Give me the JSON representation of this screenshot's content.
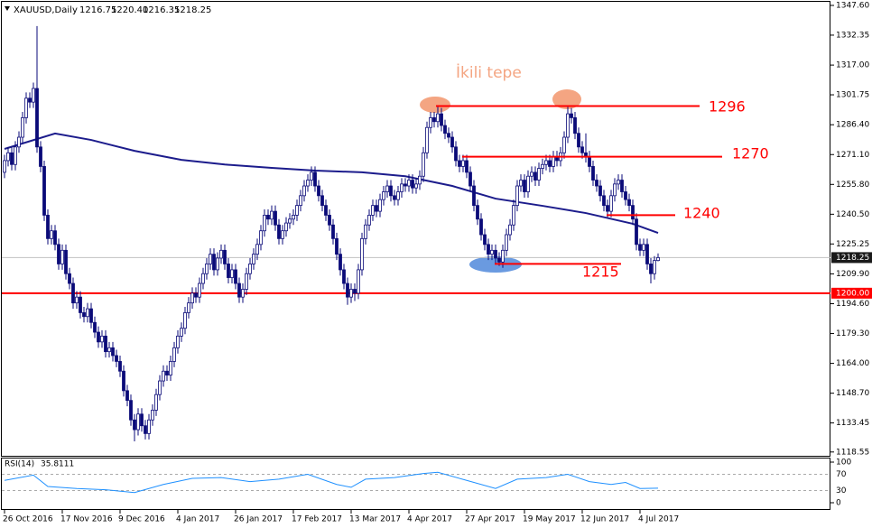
{
  "chart_data": {
    "type": "candlestick",
    "title": "XAUUSD,Daily",
    "last_bar": {
      "values": [
        1216.75,
        1220.4,
        1216.35,
        1218.25
      ],
      "value_labels": [
        "1216.75",
        "1220.40",
        "1216.35",
        "1218.25"
      ]
    },
    "categories": [
      "26 Oct 2016",
      null,
      null,
      null,
      null,
      null,
      null,
      null,
      null,
      null,
      null,
      null,
      null,
      null,
      null,
      null,
      "17 Nov 2016",
      null,
      null,
      null,
      null,
      null,
      null,
      null,
      null,
      null,
      null,
      null,
      null,
      null,
      null,
      null,
      "9 Dec 2016",
      null,
      null,
      null,
      null,
      null,
      null,
      null,
      null,
      null,
      null,
      null,
      null,
      null,
      null,
      null,
      "4 Jan 2017",
      null,
      null,
      null,
      null,
      null,
      null,
      null,
      null,
      null,
      null,
      null,
      null,
      null,
      null,
      null,
      "26 Jan 2017",
      null,
      null,
      null,
      null,
      null,
      null,
      null,
      null,
      null,
      null,
      null,
      null,
      null,
      null,
      null,
      "17 Feb 2017",
      null,
      null,
      null,
      null,
      null,
      null,
      null,
      null,
      null,
      null,
      null,
      null,
      null,
      null,
      null,
      "13 Mar 2017",
      null,
      null,
      null,
      null,
      null,
      null,
      null,
      null,
      null,
      null,
      null,
      null,
      null,
      null,
      null,
      "4 Apr 2017",
      null,
      null,
      null,
      null,
      null,
      null,
      null,
      null,
      null,
      null,
      null,
      null,
      null,
      null,
      null,
      "27 Apr 2017",
      null,
      null,
      null,
      null,
      null,
      null,
      null,
      null,
      null,
      null,
      null,
      null,
      null,
      null,
      null,
      "19 May 2017",
      null,
      null,
      null,
      null,
      null,
      null,
      null,
      null,
      null,
      null,
      null,
      null,
      null,
      null,
      null,
      "12 Jun 2017",
      null,
      null,
      null,
      null,
      null,
      null,
      null,
      null,
      null,
      null,
      null,
      null,
      null,
      null,
      null,
      "4 Jul 2017",
      null,
      null,
      null,
      null,
      null
    ],
    "open": [
      1262,
      1268,
      1272,
      1266,
      1275,
      1280,
      1290,
      1300,
      1298,
      1305,
      1275,
      1265,
      1240,
      1228,
      1232,
      1225,
      1215,
      1222,
      1210,
      1205,
      1195,
      1198,
      1190,
      1188,
      1192,
      1185,
      1180,
      1175,
      1178,
      1170,
      1172,
      1168,
      1165,
      1160,
      1150,
      1145,
      1135,
      1130,
      1138,
      1132,
      1128,
      1135,
      1140,
      1148,
      1155,
      1160,
      1158,
      1165,
      1172,
      1178,
      1182,
      1190,
      1195,
      1200,
      1198,
      1205,
      1210,
      1215,
      1220,
      1212,
      1218,
      1222,
      1215,
      1208,
      1212,
      1205,
      1198,
      1202,
      1210,
      1215,
      1220,
      1225,
      1232,
      1240,
      1238,
      1242,
      1235,
      1228,
      1232,
      1236,
      1238,
      1240,
      1245,
      1250,
      1255,
      1258,
      1262,
      1255,
      1250,
      1245,
      1240,
      1235,
      1228,
      1220,
      1212,
      1205,
      1198,
      1202,
      1200,
      1212,
      1228,
      1235,
      1240,
      1245,
      1242,
      1248,
      1252,
      1255,
      1250,
      1248,
      1252,
      1256,
      1255,
      1258,
      1254,
      1256,
      1260,
      1272,
      1285,
      1290,
      1288,
      1292,
      1286,
      1282,
      1280,
      1275,
      1268,
      1265,
      1268,
      1262,
      1255,
      1245,
      1238,
      1230,
      1225,
      1220,
      1222,
      1218,
      1216,
      1222,
      1230,
      1235,
      1245,
      1255,
      1258,
      1252,
      1260,
      1262,
      1258,
      1264,
      1266,
      1268,
      1265,
      1270,
      1268,
      1272,
      1280,
      1292,
      1290,
      1282,
      1275,
      1272,
      1270,
      1265,
      1258,
      1255,
      1250,
      1245,
      1242,
      1250,
      1256,
      1258,
      1252,
      1248,
      1245,
      1238,
      1225,
      1222,
      1225,
      1215,
      1210,
      1216.75
    ],
    "high": [
      1271,
      1275,
      1275,
      1278,
      1283,
      1293,
      1303,
      1303,
      1308,
      1337,
      1278,
      1268,
      1243,
      1235,
      1235,
      1228,
      1225,
      1225,
      1213,
      1208,
      1201,
      1201,
      1193,
      1195,
      1195,
      1188,
      1183,
      1181,
      1181,
      1175,
      1175,
      1171,
      1168,
      1163,
      1153,
      1148,
      1138,
      1141,
      1141,
      1135,
      1138,
      1143,
      1151,
      1158,
      1163,
      1163,
      1168,
      1175,
      1181,
      1185,
      1193,
      1198,
      1203,
      1203,
      1208,
      1213,
      1218,
      1223,
      1223,
      1221,
      1225,
      1225,
      1218,
      1215,
      1215,
      1208,
      1205,
      1213,
      1218,
      1223,
      1228,
      1235,
      1243,
      1243,
      1245,
      1245,
      1238,
      1235,
      1239,
      1241,
      1243,
      1248,
      1253,
      1258,
      1261,
      1265,
      1265,
      1258,
      1253,
      1248,
      1243,
      1238,
      1231,
      1223,
      1215,
      1208,
      1205,
      1205,
      1215,
      1231,
      1238,
      1243,
      1248,
      1248,
      1251,
      1255,
      1258,
      1258,
      1253,
      1255,
      1259,
      1259,
      1261,
      1261,
      1259,
      1263,
      1275,
      1288,
      1293,
      1293,
      1296,
      1295,
      1289,
      1285,
      1283,
      1278,
      1271,
      1271,
      1271,
      1265,
      1258,
      1248,
      1241,
      1233,
      1228,
      1225,
      1225,
      1221,
      1225,
      1233,
      1238,
      1248,
      1258,
      1261,
      1261,
      1263,
      1265,
      1265,
      1267,
      1269,
      1271,
      1271,
      1273,
      1273,
      1275,
      1283,
      1296,
      1295,
      1293,
      1285,
      1278,
      1282,
      1273,
      1268,
      1261,
      1258,
      1253,
      1248,
      1253,
      1259,
      1261,
      1261,
      1255,
      1251,
      1248,
      1241,
      1228,
      1228,
      1228,
      1218,
      1219,
      1220.4
    ],
    "low": [
      1259,
      1265,
      1263,
      1263,
      1272,
      1277,
      1287,
      1295,
      1295,
      1272,
      1262,
      1237,
      1225,
      1225,
      1222,
      1212,
      1212,
      1207,
      1202,
      1192,
      1192,
      1187,
      1185,
      1185,
      1182,
      1177,
      1172,
      1172,
      1167,
      1167,
      1165,
      1162,
      1157,
      1147,
      1142,
      1132,
      1124,
      1127,
      1129,
      1125,
      1125,
      1132,
      1137,
      1145,
      1152,
      1155,
      1155,
      1162,
      1169,
      1175,
      1179,
      1187,
      1192,
      1195,
      1195,
      1202,
      1207,
      1212,
      1209,
      1209,
      1215,
      1212,
      1205,
      1205,
      1202,
      1195,
      1195,
      1199,
      1207,
      1212,
      1217,
      1222,
      1229,
      1235,
      1235,
      1232,
      1225,
      1225,
      1229,
      1233,
      1235,
      1237,
      1242,
      1247,
      1252,
      1255,
      1252,
      1247,
      1242,
      1237,
      1232,
      1225,
      1217,
      1209,
      1202,
      1194,
      1195,
      1196,
      1197,
      1209,
      1225,
      1232,
      1237,
      1239,
      1239,
      1245,
      1249,
      1247,
      1245,
      1245,
      1249,
      1252,
      1252,
      1251,
      1251,
      1253,
      1257,
      1269,
      1282,
      1285,
      1285,
      1283,
      1279,
      1277,
      1272,
      1265,
      1262,
      1262,
      1259,
      1252,
      1242,
      1235,
      1227,
      1222,
      1217,
      1217,
      1215,
      1214,
      1213,
      1219,
      1227,
      1232,
      1242,
      1252,
      1249,
      1249,
      1257,
      1255,
      1255,
      1261,
      1263,
      1262,
      1262,
      1265,
      1265,
      1269,
      1277,
      1287,
      1279,
      1272,
      1269,
      1267,
      1262,
      1255,
      1252,
      1247,
      1242,
      1239,
      1239,
      1247,
      1253,
      1249,
      1245,
      1242,
      1235,
      1222,
      1219,
      1219,
      1212,
      1205,
      1207,
      1216.35
    ],
    "close": [
      1268,
      1272,
      1266,
      1275,
      1280,
      1290,
      1300,
      1298,
      1305,
      1275,
      1265,
      1240,
      1228,
      1232,
      1225,
      1215,
      1222,
      1210,
      1205,
      1195,
      1198,
      1190,
      1188,
      1192,
      1185,
      1180,
      1175,
      1178,
      1170,
      1172,
      1168,
      1165,
      1160,
      1150,
      1145,
      1135,
      1130,
      1138,
      1132,
      1128,
      1135,
      1140,
      1148,
      1155,
      1160,
      1158,
      1165,
      1172,
      1178,
      1182,
      1190,
      1195,
      1200,
      1198,
      1205,
      1210,
      1215,
      1220,
      1212,
      1218,
      1222,
      1215,
      1208,
      1212,
      1205,
      1198,
      1202,
      1210,
      1215,
      1220,
      1225,
      1232,
      1240,
      1238,
      1242,
      1235,
      1228,
      1232,
      1236,
      1238,
      1240,
      1245,
      1250,
      1255,
      1258,
      1262,
      1255,
      1250,
      1245,
      1240,
      1235,
      1228,
      1220,
      1212,
      1205,
      1198,
      1202,
      1200,
      1212,
      1228,
      1235,
      1240,
      1245,
      1242,
      1248,
      1252,
      1255,
      1250,
      1248,
      1252,
      1256,
      1255,
      1258,
      1254,
      1256,
      1260,
      1272,
      1285,
      1290,
      1288,
      1292,
      1286,
      1282,
      1280,
      1275,
      1268,
      1265,
      1268,
      1262,
      1255,
      1245,
      1238,
      1230,
      1225,
      1220,
      1222,
      1218,
      1216,
      1222,
      1230,
      1235,
      1245,
      1255,
      1258,
      1252,
      1260,
      1262,
      1258,
      1264,
      1266,
      1268,
      1265,
      1270,
      1268,
      1272,
      1280,
      1292,
      1290,
      1282,
      1275,
      1272,
      1270,
      1265,
      1258,
      1255,
      1250,
      1245,
      1242,
      1250,
      1256,
      1258,
      1252,
      1248,
      1245,
      1238,
      1225,
      1222,
      1225,
      1215,
      1210,
      1216.75,
      1218.25
    ],
    "color": "#0a0a78",
    "ma": {
      "x": [
        0,
        14,
        24,
        36,
        49,
        61,
        74,
        86,
        99,
        111,
        124,
        136,
        149,
        161,
        174,
        181
      ],
      "values": [
        1274,
        1281.9,
        1278.6,
        1273,
        1268.4,
        1266,
        1264.3,
        1262.9,
        1262,
        1260,
        1255,
        1248.5,
        1244.8,
        1241.1,
        1235.6,
        1230.9
      ],
      "color": "#1c1c8c"
    },
    "xlim": [
      -0.75,
      228.75
    ],
    "ylim": [
      1116.6,
      1349.45
    ],
    "yticks": [
      {
        "value": 1347.6,
        "label": "1347.60"
      },
      {
        "value": 1332.35,
        "label": "1332.35"
      },
      {
        "value": 1317,
        "label": "1317.00"
      },
      {
        "value": 1301.75,
        "label": "1301.75"
      },
      {
        "value": 1286.4,
        "label": "1286.40"
      },
      {
        "value": 1271.1,
        "label": "1271.10"
      },
      {
        "value": 1255.8,
        "label": "1255.80"
      },
      {
        "value": 1240.5,
        "label": "1240.50"
      },
      {
        "value": 1225.25,
        "label": "1225.25"
      },
      {
        "value": 1209.9,
        "label": "1209.90"
      },
      {
        "value": 1194.6,
        "label": "1194.60"
      },
      {
        "value": 1179.3,
        "label": "1179.30"
      },
      {
        "value": 1164,
        "label": "1164.00"
      },
      {
        "value": 1148.7,
        "label": "1148.70"
      },
      {
        "value": 1133.45,
        "label": "1133.45"
      },
      {
        "value": 1118.55,
        "label": "1118.55"
      }
    ],
    "levels": [
      1296,
      1270,
      1240,
      1215
    ],
    "level_color": "#ff0000",
    "support": {
      "value": 1200,
      "label": "1200.00"
    },
    "annotation": "İkili tepe",
    "rsi": {
      "name": "RSI(14)",
      "x": [
        0,
        8,
        12,
        20,
        28,
        36,
        44,
        52,
        60,
        68,
        76,
        84,
        92,
        96,
        100,
        108,
        116,
        120,
        128,
        136,
        142,
        150,
        156,
        162,
        168,
        172,
        176,
        181
      ],
      "values": [
        55,
        68,
        40,
        35,
        32,
        25,
        45,
        60,
        62,
        52,
        58,
        70,
        45,
        38,
        58,
        62,
        72,
        75,
        55,
        35,
        58,
        62,
        70,
        52,
        45,
        50,
        35,
        35.8111
      ],
      "ylim": [
        0,
        100
      ],
      "yticks": [
        100,
        70,
        30,
        0
      ],
      "color": "#1e90ff"
    }
  }
}
